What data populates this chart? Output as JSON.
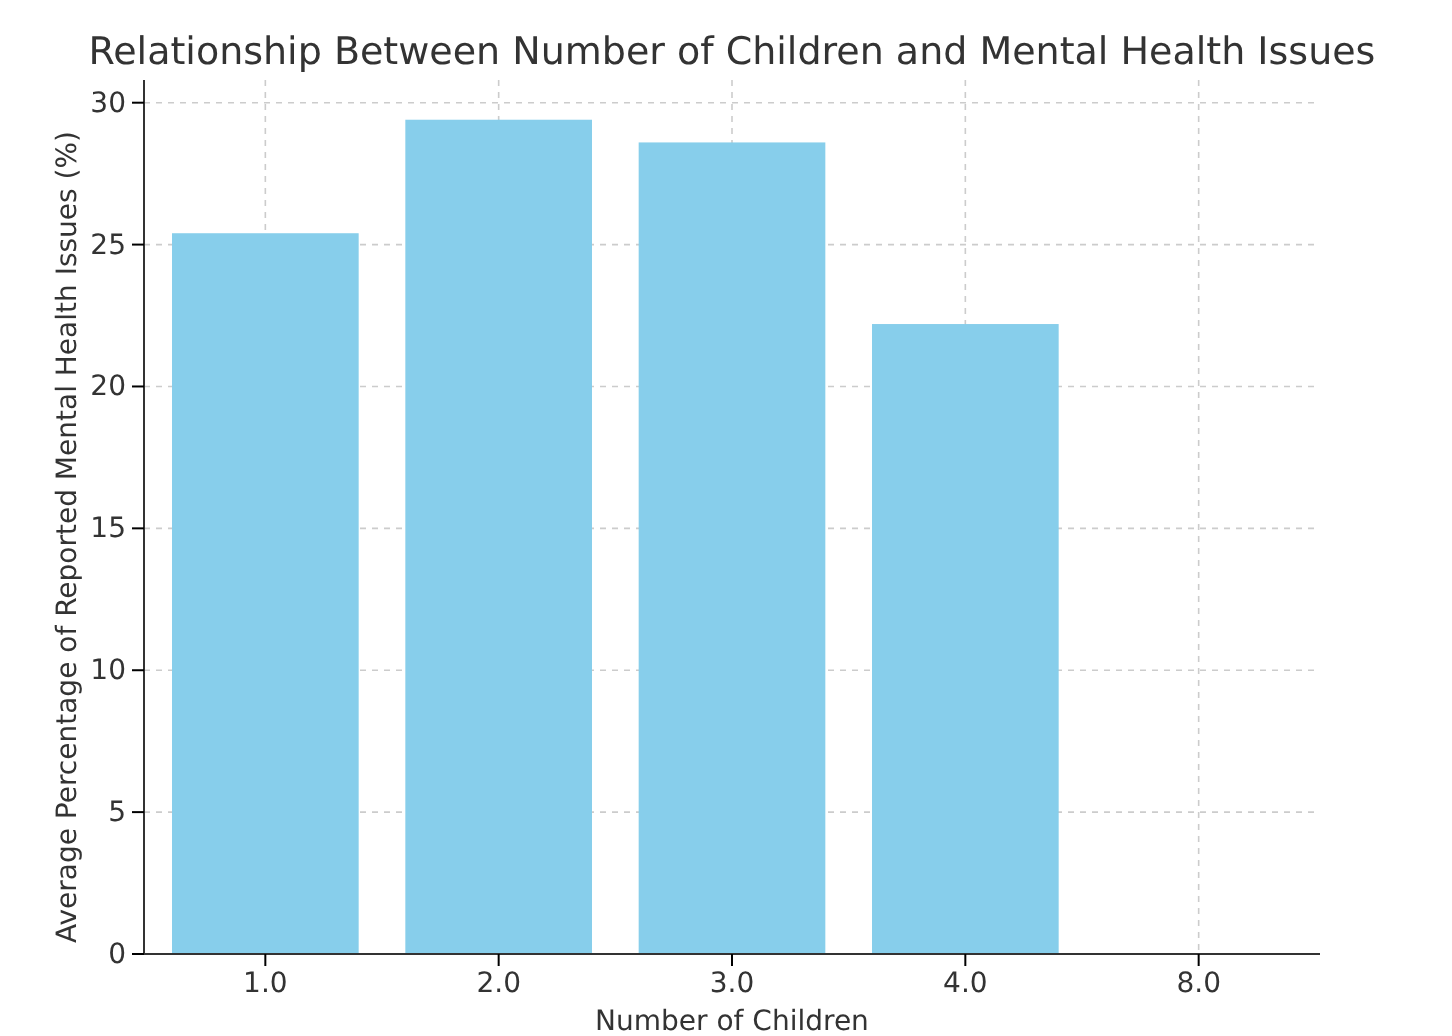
{
  "chart_data": {
    "type": "bar",
    "title": "Relationship Between Number of Children and Mental Health Issues",
    "xlabel": "Number of Children",
    "ylabel": "Average Percentage of Reported Mental Health Issues (%)",
    "categories": [
      "1.0",
      "2.0",
      "3.0",
      "4.0",
      "8.0"
    ],
    "values": [
      25.4,
      29.4,
      28.6,
      22.2,
      0
    ],
    "color": "#87ceeb",
    "ylim": [
      0,
      30.8
    ],
    "yticks": [
      0,
      5,
      10,
      15,
      20,
      25,
      30
    ],
    "grid": true
  }
}
